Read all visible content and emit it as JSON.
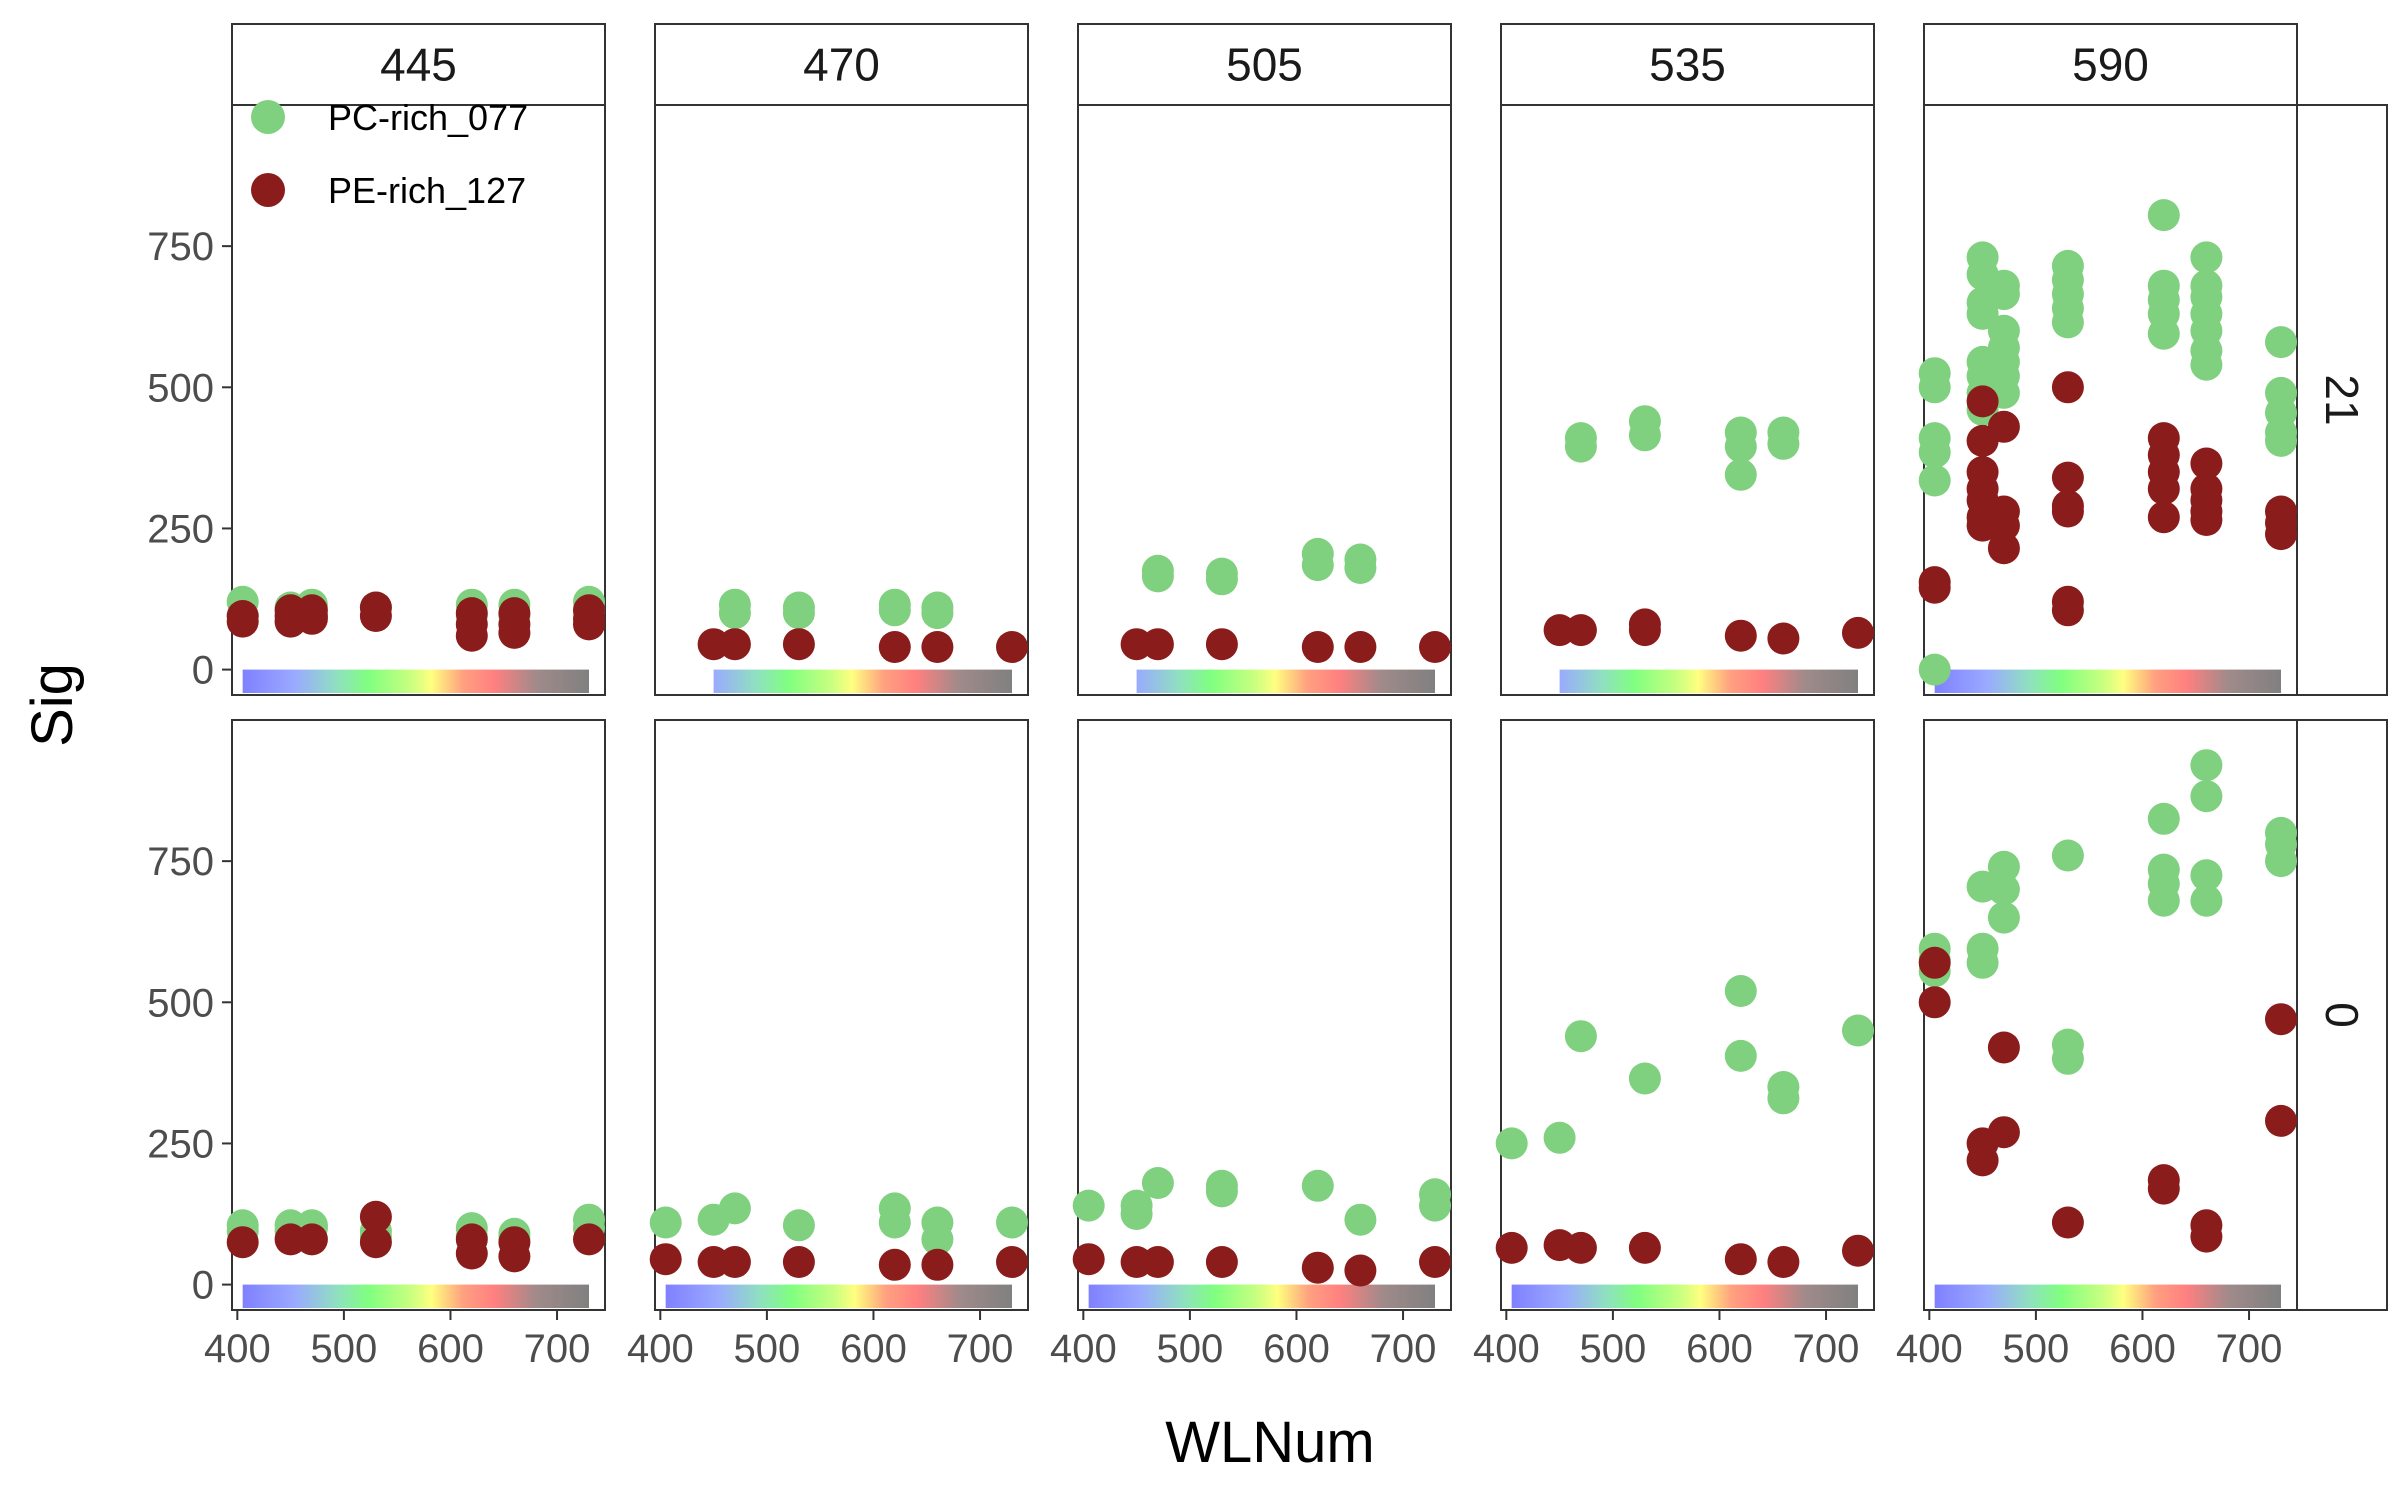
{
  "chart_data": {
    "type": "scatter",
    "facet_columns": [
      "445",
      "470",
      "505",
      "535",
      "590"
    ],
    "facet_rows": [
      "21",
      "0"
    ],
    "xlabel": "WLNum",
    "ylabel": "Sig",
    "xlim": [
      395,
      745
    ],
    "ylim": [
      -45,
      1000
    ],
    "x_ticks": [
      400,
      500,
      600,
      700
    ],
    "y_ticks": [
      0,
      250,
      500,
      750
    ],
    "grid": false,
    "legend_position": "top-left (inside first panel)",
    "colors": {
      "PC-rich_077": "#7fd07f",
      "PE-rich_127": "#8b1c1c"
    },
    "series": [
      {
        "name": "PC-rich_077",
        "panels": {
          "21|445": [
            [
              405,
              120
            ],
            [
              405,
              95
            ],
            [
              450,
              110
            ],
            [
              450,
              85
            ],
            [
              470,
              115
            ],
            [
              530,
              110
            ],
            [
              620,
              115
            ],
            [
              620,
              95
            ],
            [
              660,
              115
            ],
            [
              660,
              95
            ],
            [
              730,
              120
            ],
            [
              730,
              105
            ]
          ],
          "21|470": [
            [
              470,
              115
            ],
            [
              470,
              100
            ],
            [
              530,
              110
            ],
            [
              530,
              100
            ],
            [
              620,
              115
            ],
            [
              620,
              105
            ],
            [
              660,
              110
            ],
            [
              660,
              100
            ]
          ],
          "21|505": [
            [
              470,
              175
            ],
            [
              470,
              165
            ],
            [
              530,
              170
            ],
            [
              530,
              160
            ],
            [
              620,
              205
            ],
            [
              620,
              185
            ],
            [
              660,
              195
            ],
            [
              660,
              180
            ]
          ],
          "21|535": [
            [
              470,
              410
            ],
            [
              470,
              395
            ],
            [
              530,
              440
            ],
            [
              530,
              415
            ],
            [
              620,
              420
            ],
            [
              620,
              395
            ],
            [
              620,
              345
            ],
            [
              660,
              420
            ],
            [
              660,
              400
            ]
          ],
          "21|590": [
            [
              405,
              525
            ],
            [
              405,
              500
            ],
            [
              405,
              410
            ],
            [
              405,
              385
            ],
            [
              405,
              335
            ],
            [
              405,
              0
            ],
            [
              450,
              730
            ],
            [
              450,
              700
            ],
            [
              450,
              650
            ],
            [
              450,
              630
            ],
            [
              450,
              545
            ],
            [
              450,
              520
            ],
            [
              450,
              490
            ],
            [
              450,
              460
            ],
            [
              470,
              680
            ],
            [
              470,
              665
            ],
            [
              470,
              600
            ],
            [
              470,
              570
            ],
            [
              470,
              545
            ],
            [
              470,
              520
            ],
            [
              470,
              490
            ],
            [
              530,
              715
            ],
            [
              530,
              690
            ],
            [
              530,
              665
            ],
            [
              530,
              640
            ],
            [
              530,
              615
            ],
            [
              620,
              805
            ],
            [
              620,
              680
            ],
            [
              620,
              655
            ],
            [
              620,
              630
            ],
            [
              620,
              595
            ],
            [
              660,
              730
            ],
            [
              660,
              680
            ],
            [
              660,
              660
            ],
            [
              660,
              630
            ],
            [
              660,
              600
            ],
            [
              660,
              565
            ],
            [
              660,
              540
            ],
            [
              730,
              580
            ],
            [
              730,
              490
            ],
            [
              730,
              455
            ],
            [
              730,
              420
            ],
            [
              730,
              405
            ]
          ],
          "0|445": [
            [
              405,
              105
            ],
            [
              405,
              95
            ],
            [
              450,
              105
            ],
            [
              450,
              95
            ],
            [
              470,
              105
            ],
            [
              470,
              100
            ],
            [
              530,
              95
            ],
            [
              530,
              85
            ],
            [
              620,
              100
            ],
            [
              620,
              85
            ],
            [
              660,
              90
            ],
            [
              660,
              80
            ],
            [
              730,
              115
            ],
            [
              730,
              100
            ]
          ],
          "0|470": [
            [
              405,
              110
            ],
            [
              450,
              115
            ],
            [
              470,
              135
            ],
            [
              530,
              105
            ],
            [
              620,
              135
            ],
            [
              620,
              110
            ],
            [
              660,
              110
            ],
            [
              660,
              80
            ],
            [
              730,
              110
            ]
          ],
          "0|505": [
            [
              405,
              140
            ],
            [
              450,
              140
            ],
            [
              450,
              125
            ],
            [
              470,
              180
            ],
            [
              530,
              175
            ],
            [
              530,
              165
            ],
            [
              620,
              175
            ],
            [
              660,
              115
            ],
            [
              730,
              160
            ],
            [
              730,
              140
            ]
          ],
          "0|535": [
            [
              405,
              250
            ],
            [
              450,
              260
            ],
            [
              470,
              440
            ],
            [
              530,
              365
            ],
            [
              620,
              520
            ],
            [
              620,
              405
            ],
            [
              660,
              350
            ],
            [
              660,
              330
            ],
            [
              730,
              450
            ]
          ],
          "0|590": [
            [
              405,
              595
            ],
            [
              405,
              575
            ],
            [
              405,
              555
            ],
            [
              450,
              705
            ],
            [
              450,
              595
            ],
            [
              450,
              570
            ],
            [
              470,
              740
            ],
            [
              470,
              700
            ],
            [
              470,
              650
            ],
            [
              530,
              760
            ],
            [
              530,
              425
            ],
            [
              530,
              400
            ],
            [
              620,
              825
            ],
            [
              620,
              735
            ],
            [
              620,
              710
            ],
            [
              620,
              680
            ],
            [
              660,
              920
            ],
            [
              660,
              865
            ],
            [
              660,
              725
            ],
            [
              660,
              680
            ],
            [
              730,
              800
            ],
            [
              730,
              780
            ],
            [
              730,
              750
            ]
          ]
        }
      },
      {
        "name": "PE-rich_127",
        "panels": {
          "21|445": [
            [
              405,
              95
            ],
            [
              405,
              85
            ],
            [
              450,
              105
            ],
            [
              450,
              95
            ],
            [
              450,
              85
            ],
            [
              470,
              105
            ],
            [
              470,
              95
            ],
            [
              470,
              90
            ],
            [
              530,
              110
            ],
            [
              530,
              95
            ],
            [
              620,
              100
            ],
            [
              620,
              80
            ],
            [
              620,
              60
            ],
            [
              660,
              100
            ],
            [
              660,
              80
            ],
            [
              660,
              65
            ],
            [
              730,
              105
            ],
            [
              730,
              90
            ],
            [
              730,
              80
            ]
          ],
          "21|470": [
            [
              450,
              45
            ],
            [
              470,
              45
            ],
            [
              530,
              45
            ],
            [
              620,
              40
            ],
            [
              660,
              40
            ],
            [
              730,
              40
            ]
          ],
          "21|505": [
            [
              450,
              45
            ],
            [
              470,
              45
            ],
            [
              530,
              45
            ],
            [
              620,
              40
            ],
            [
              660,
              40
            ],
            [
              730,
              40
            ]
          ],
          "21|535": [
            [
              450,
              70
            ],
            [
              470,
              70
            ],
            [
              530,
              80
            ],
            [
              530,
              70
            ],
            [
              620,
              60
            ],
            [
              660,
              55
            ],
            [
              730,
              65
            ]
          ],
          "21|590": [
            [
              405,
              155
            ],
            [
              405,
              145
            ],
            [
              450,
              475
            ],
            [
              450,
              405
            ],
            [
              450,
              350
            ],
            [
              450,
              320
            ],
            [
              450,
              300
            ],
            [
              450,
              270
            ],
            [
              450,
              255
            ],
            [
              470,
              430
            ],
            [
              470,
              280
            ],
            [
              470,
              255
            ],
            [
              470,
              215
            ],
            [
              530,
              500
            ],
            [
              530,
              340
            ],
            [
              530,
              290
            ],
            [
              530,
              280
            ],
            [
              530,
              120
            ],
            [
              530,
              105
            ],
            [
              620,
              410
            ],
            [
              620,
              380
            ],
            [
              620,
              350
            ],
            [
              620,
              320
            ],
            [
              620,
              270
            ],
            [
              660,
              365
            ],
            [
              660,
              320
            ],
            [
              660,
              300
            ],
            [
              660,
              280
            ],
            [
              660,
              265
            ],
            [
              730,
              280
            ],
            [
              730,
              260
            ],
            [
              730,
              240
            ]
          ],
          "0|445": [
            [
              405,
              75
            ],
            [
              450,
              80
            ],
            [
              470,
              80
            ],
            [
              530,
              120
            ],
            [
              530,
              75
            ],
            [
              620,
              80
            ],
            [
              620,
              55
            ],
            [
              660,
              75
            ],
            [
              660,
              50
            ],
            [
              730,
              80
            ]
          ],
          "0|470": [
            [
              405,
              45
            ],
            [
              450,
              40
            ],
            [
              470,
              40
            ],
            [
              530,
              40
            ],
            [
              620,
              35
            ],
            [
              660,
              35
            ],
            [
              730,
              40
            ]
          ],
          "0|505": [
            [
              405,
              45
            ],
            [
              450,
              40
            ],
            [
              470,
              40
            ],
            [
              530,
              40
            ],
            [
              620,
              30
            ],
            [
              660,
              25
            ],
            [
              730,
              40
            ]
          ],
          "0|535": [
            [
              405,
              65
            ],
            [
              450,
              70
            ],
            [
              470,
              65
            ],
            [
              530,
              65
            ],
            [
              620,
              45
            ],
            [
              660,
              40
            ],
            [
              730,
              60
            ]
          ],
          "0|590": [
            [
              405,
              500
            ],
            [
              405,
              570
            ],
            [
              450,
              250
            ],
            [
              450,
              220
            ],
            [
              470,
              420
            ],
            [
              470,
              270
            ],
            [
              530,
              110
            ],
            [
              620,
              185
            ],
            [
              620,
              170
            ],
            [
              660,
              105
            ],
            [
              660,
              85
            ],
            [
              730,
              470
            ],
            [
              730,
              290
            ]
          ]
        }
      }
    ],
    "wavelength_bar": {
      "y_range": [
        -45,
        0
      ],
      "gradient": [
        {
          "wl": 400,
          "color": "#8080ff"
        },
        {
          "wl": 450,
          "color": "#9aaaff"
        },
        {
          "wl": 490,
          "color": "#8fe0c0"
        },
        {
          "wl": 520,
          "color": "#80ff80"
        },
        {
          "wl": 560,
          "color": "#c8ff80"
        },
        {
          "wl": 580,
          "color": "#ffff80"
        },
        {
          "wl": 610,
          "color": "#ffa080"
        },
        {
          "wl": 640,
          "color": "#ff8080"
        },
        {
          "wl": 680,
          "color": "#a08a8a"
        },
        {
          "wl": 730,
          "color": "#808080"
        }
      ],
      "panel_x_ranges": {
        "21|445": [
          405,
          730
        ],
        "21|470": [
          450,
          730
        ],
        "21|505": [
          450,
          730
        ],
        "21|535": [
          450,
          730
        ],
        "21|590": [
          405,
          730
        ],
        "0|445": [
          405,
          730
        ],
        "0|470": [
          405,
          730
        ],
        "0|505": [
          405,
          730
        ],
        "0|535": [
          405,
          730
        ],
        "0|590": [
          405,
          730
        ]
      }
    }
  }
}
